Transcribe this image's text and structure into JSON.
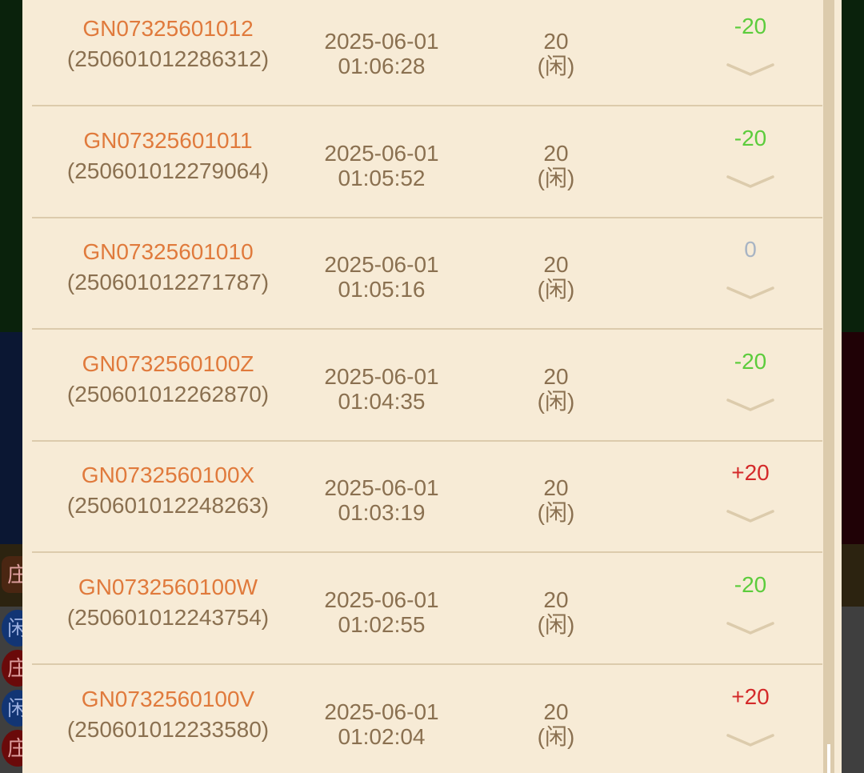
{
  "background": {
    "badges": [
      "庄",
      "闲",
      "庄",
      "闲",
      "庄"
    ]
  },
  "colors": {
    "id": "#e07a3c",
    "text": "#8a7050",
    "win": "#d42a2a",
    "loss": "#5ccc3c",
    "neutral": "#a8b4c4"
  },
  "records": [
    {
      "code": "GN07325601012",
      "order": "(250601012286312)",
      "date": "2025-06-01",
      "time": "01:06:28",
      "amount": "20",
      "side": "(闲)",
      "result": "-20",
      "result_type": "loss"
    },
    {
      "code": "GN07325601011",
      "order": "(250601012279064)",
      "date": "2025-06-01",
      "time": "01:05:52",
      "amount": "20",
      "side": "(闲)",
      "result": "-20",
      "result_type": "loss"
    },
    {
      "code": "GN07325601010",
      "order": "(250601012271787)",
      "date": "2025-06-01",
      "time": "01:05:16",
      "amount": "20",
      "side": "(闲)",
      "result": "0",
      "result_type": "neutral"
    },
    {
      "code": "GN0732560100Z",
      "order": "(250601012262870)",
      "date": "2025-06-01",
      "time": "01:04:35",
      "amount": "20",
      "side": "(闲)",
      "result": "-20",
      "result_type": "loss"
    },
    {
      "code": "GN0732560100X",
      "order": "(250601012248263)",
      "date": "2025-06-01",
      "time": "01:03:19",
      "amount": "20",
      "side": "(闲)",
      "result": "+20",
      "result_type": "win"
    },
    {
      "code": "GN0732560100W",
      "order": "(250601012243754)",
      "date": "2025-06-01",
      "time": "01:02:55",
      "amount": "20",
      "side": "(闲)",
      "result": "-20",
      "result_type": "loss"
    },
    {
      "code": "GN0732560100V",
      "order": "(250601012233580)",
      "date": "2025-06-01",
      "time": "01:02:04",
      "amount": "20",
      "side": "(闲)",
      "result": "+20",
      "result_type": "win"
    }
  ]
}
